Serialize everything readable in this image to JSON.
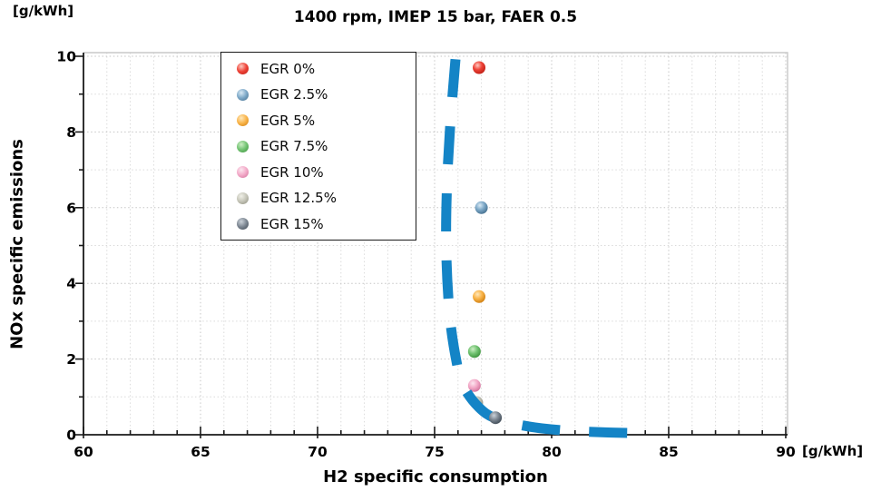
{
  "chart_data": {
    "type": "scatter",
    "title": "1400 rpm, IMEP 15 bar, FAER 0.5",
    "xlabel": "H2 specific consumption",
    "ylabel": "NOx specific emissions",
    "x_unit": "[g/kWh]",
    "y_unit": "[g/kWh]",
    "xlim": [
      60,
      90
    ],
    "ylim": [
      0,
      10
    ],
    "x_major_ticks": [
      60,
      65,
      70,
      75,
      80,
      85,
      90
    ],
    "y_major_ticks": [
      0,
      2,
      4,
      6,
      8,
      10
    ],
    "minor_tick_step_x": 1,
    "minor_tick_step_y": 1,
    "grid": "dotted, every 1 unit both axes",
    "legend_position": "upper left inside plot",
    "series": [
      {
        "name": "EGR 0%",
        "x": 76.9,
        "y": 9.7,
        "colors": {
          "highlight": "#ffc9c0",
          "body": "#ee4338",
          "edge": "#bf1e14"
        }
      },
      {
        "name": "EGR 2.5%",
        "x": 77.0,
        "y": 6.0,
        "colors": {
          "highlight": "#d9eaf5",
          "body": "#7ea9c8",
          "edge": "#45708f"
        }
      },
      {
        "name": "EGR 5%",
        "x": 76.9,
        "y": 3.65,
        "colors": {
          "highlight": "#ffe8bb",
          "body": "#f9b54b",
          "edge": "#d07f10"
        }
      },
      {
        "name": "EGR 7.5%",
        "x": 76.7,
        "y": 2.2,
        "colors": {
          "highlight": "#cdeec5",
          "body": "#74c474",
          "edge": "#3c933c"
        }
      },
      {
        "name": "EGR 10%",
        "x": 76.7,
        "y": 1.3,
        "colors": {
          "highlight": "#fce7f0",
          "body": "#f3abc9",
          "edge": "#d2739c"
        }
      },
      {
        "name": "EGR 12.5%",
        "x": 76.8,
        "y": 0.85,
        "colors": {
          "highlight": "#f0f0e8",
          "body": "#c6c6b9",
          "edge": "#8f8f80"
        }
      },
      {
        "name": "EGR 15%",
        "x": 77.6,
        "y": 0.45,
        "colors": {
          "highlight": "#ccd3da",
          "body": "#7e8893",
          "edge": "#3f4a55"
        }
      }
    ],
    "tradeoff_curve": {
      "style": "thick dashed",
      "color": "#1484c6",
      "stroke_width": 11,
      "dash": [
        42,
        32
      ],
      "points": [
        [
          75.89,
          9.92
        ],
        [
          75.66,
          8.1
        ],
        [
          75.52,
          6.4
        ],
        [
          75.5,
          4.8
        ],
        [
          75.64,
          3.2
        ],
        [
          75.9,
          2.05
        ],
        [
          76.22,
          1.3
        ],
        [
          76.9,
          0.72
        ],
        [
          77.65,
          0.42
        ],
        [
          79.0,
          0.22
        ],
        [
          80.6,
          0.11
        ],
        [
          82.4,
          0.06
        ],
        [
          83.95,
          0.04
        ]
      ]
    }
  },
  "colors": {
    "background": "#ffffff",
    "axis": "#1a1a1a",
    "plot_border": "#c8c8c8",
    "grid_minor": "#dadada",
    "grid_major": "#c6c6c6",
    "tick_label": "#000000",
    "curve": "#1484c6"
  }
}
